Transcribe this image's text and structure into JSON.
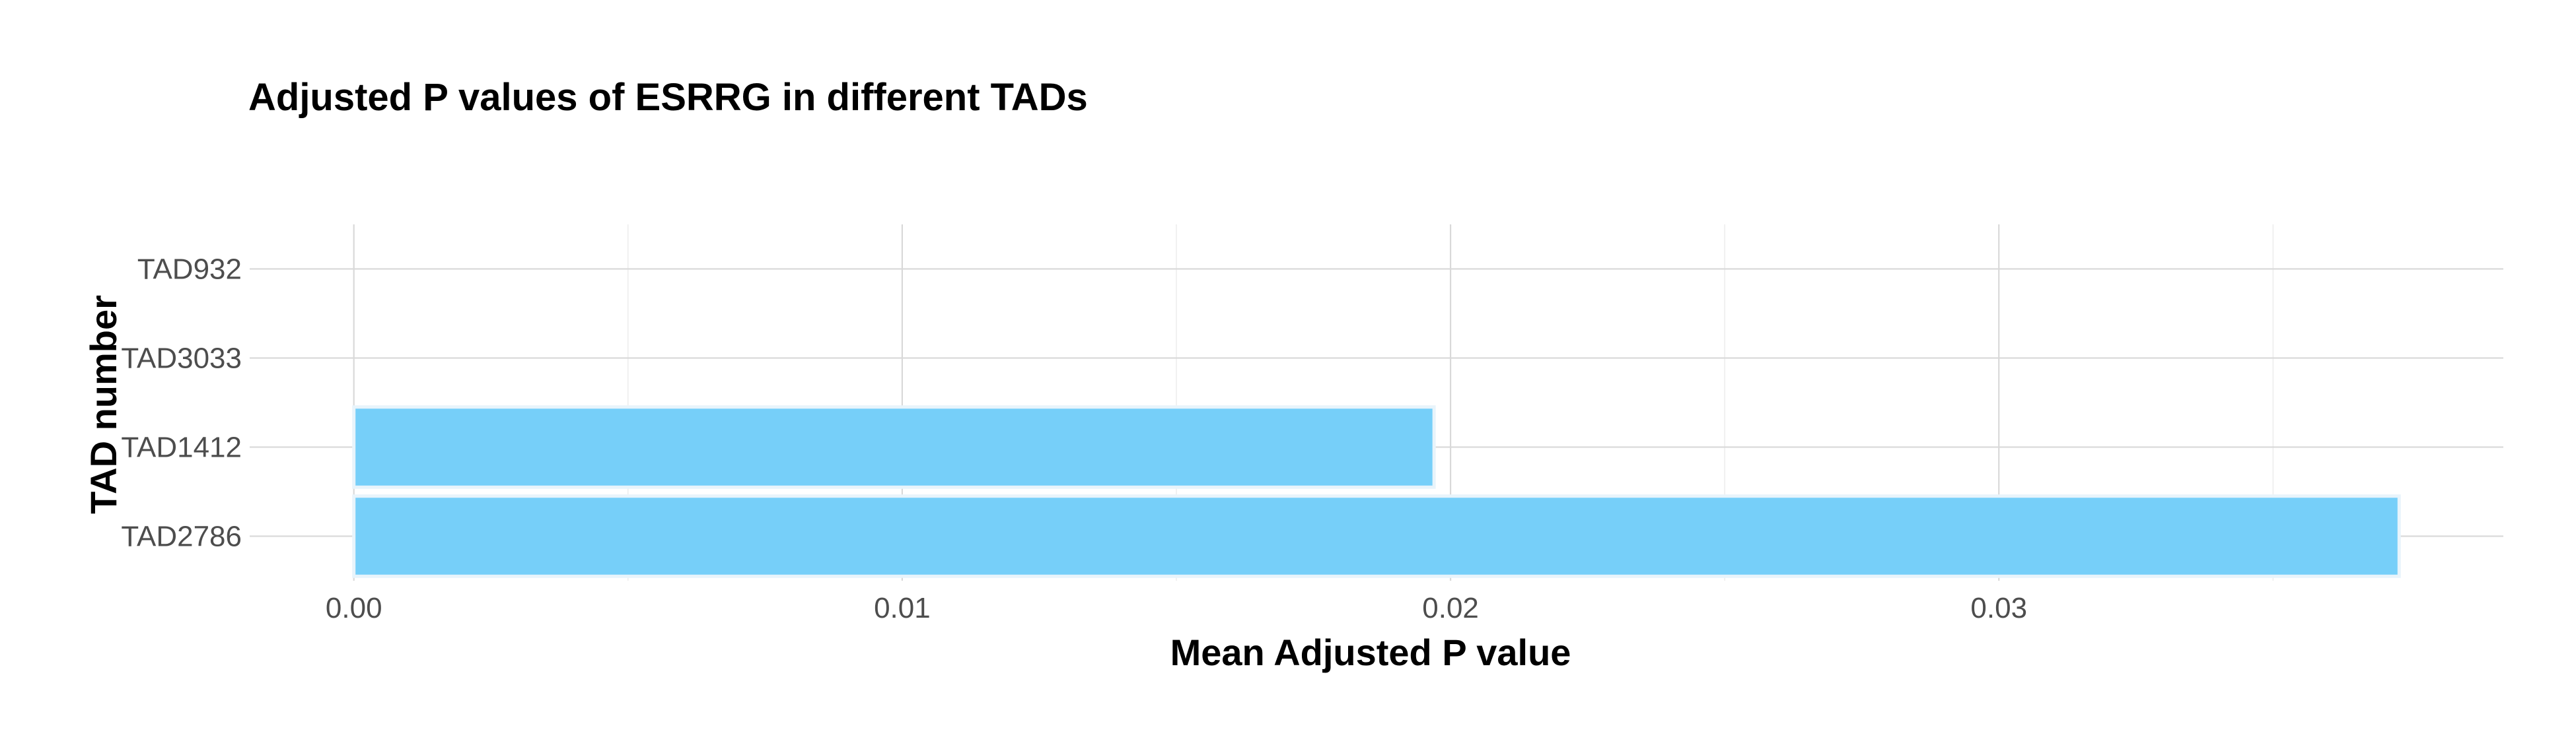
{
  "chart_data": {
    "type": "bar",
    "orientation": "horizontal",
    "title": "Adjusted P values of ESRRG in different TADs",
    "xlabel": "Mean Adjusted P value",
    "ylabel": "TAD number",
    "categories": [
      "TAD932",
      "TAD3033",
      "TAD1412",
      "TAD2786"
    ],
    "values": [
      0.0,
      0.0,
      0.0197,
      0.0373
    ],
    "xlim": [
      -0.0019,
      0.0392
    ],
    "xticks": [
      0.0,
      0.01,
      0.02,
      0.03
    ],
    "xtick_labels": [
      "0.00",
      "0.01",
      "0.02",
      "0.03"
    ],
    "grid": true,
    "legend": "none",
    "colors": {
      "bar_fill": "#76cff9",
      "bar_outline": "#e8f4fb",
      "grid_major": "#d9d9d9",
      "grid_minor": "#ebebeb",
      "tick_text": "#4d4d4d",
      "title_text": "#000000"
    }
  }
}
